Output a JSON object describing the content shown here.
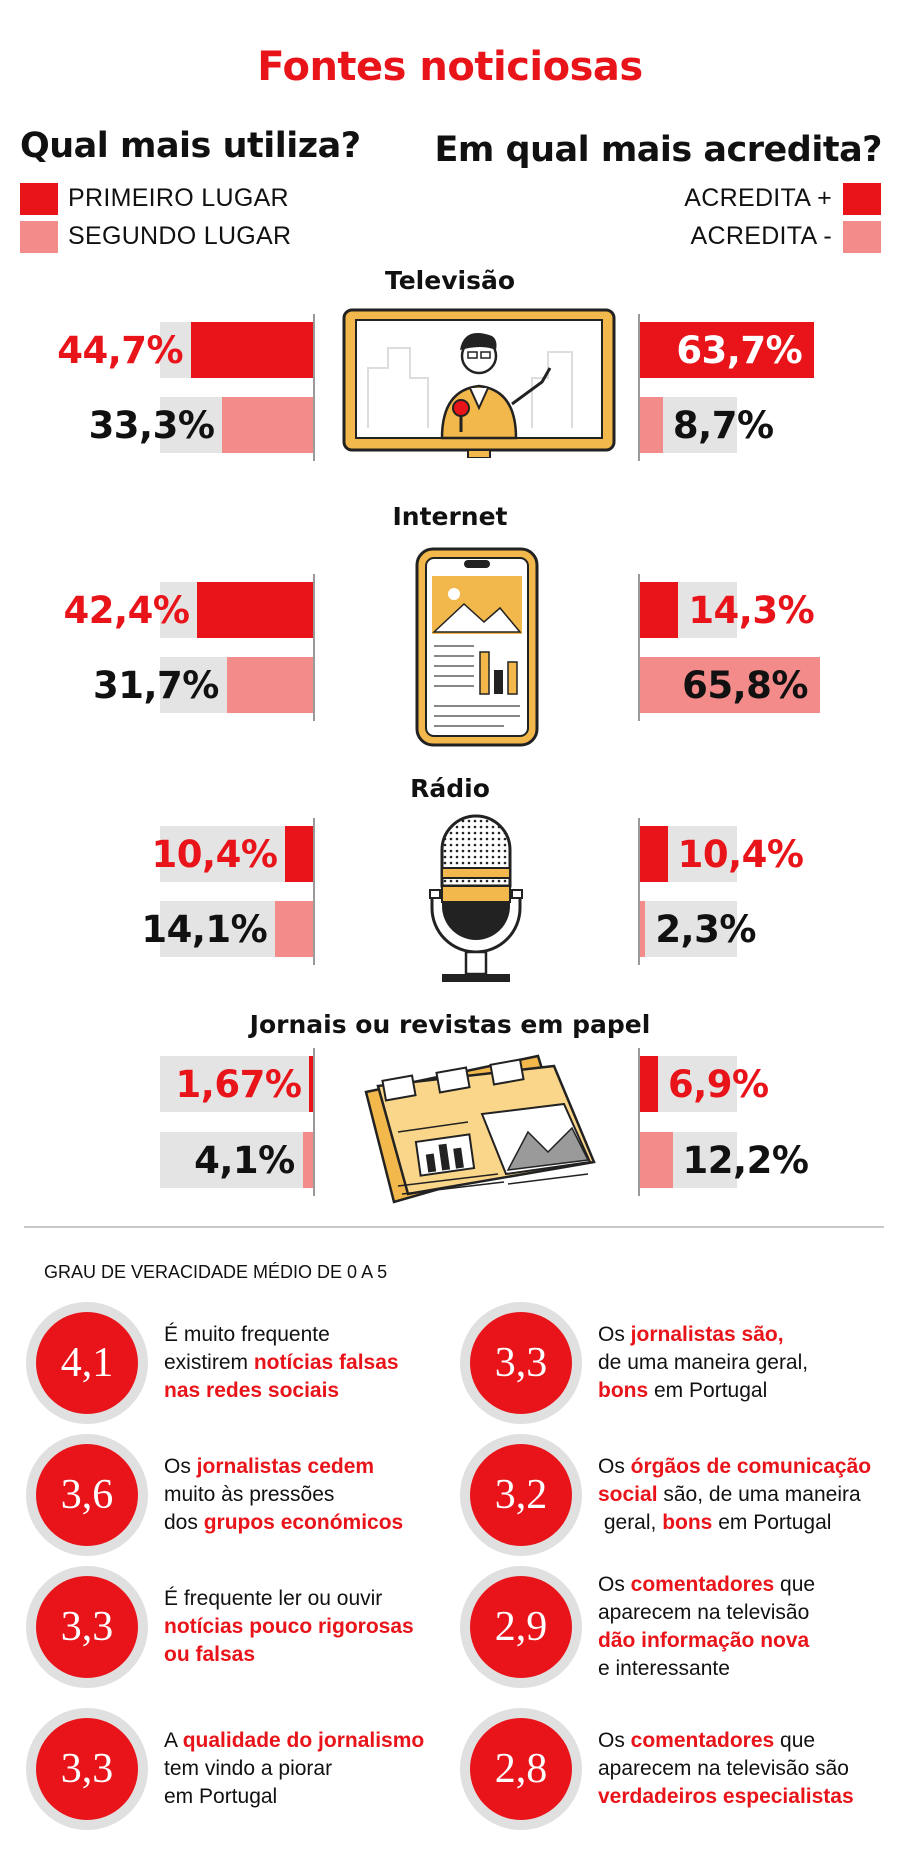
{
  "title": "Fontes noticiosas",
  "left_heading": "Qual mais utiliza?",
  "right_heading": "Em qual mais acredita?",
  "legend_left": [
    {
      "label": "PRIMEIRO LUGAR",
      "color": "#e8141a"
    },
    {
      "label": "SEGUNDO LUGAR",
      "color": "#f48b8b"
    }
  ],
  "legend_right": [
    {
      "label": "ACREDITA +",
      "color": "#e8141a"
    },
    {
      "label": "ACREDITA -",
      "color": "#f48b8b"
    }
  ],
  "chart_data": {
    "type": "bar",
    "layout": "butterfly",
    "categories": [
      "Televisão",
      "Internet",
      "Rádio",
      "Jornais ou revistas em papel"
    ],
    "series": [
      {
        "name": "PRIMEIRO LUGAR",
        "side": "left",
        "values": [
          44.7,
          42.4,
          10.4,
          1.67
        ],
        "labels": [
          "44,7%",
          "42,4%",
          "10,4%",
          "1,67%"
        ]
      },
      {
        "name": "SEGUNDO LUGAR",
        "side": "left",
        "values": [
          33.3,
          31.7,
          14.1,
          4.1
        ],
        "labels": [
          "33,3%",
          "31,7%",
          "14,1%",
          "4,1%"
        ]
      },
      {
        "name": "ACREDITA +",
        "side": "right",
        "values": [
          63.7,
          14.3,
          10.4,
          6.9
        ],
        "labels": [
          "63,7%",
          "14,3%",
          "10,4%",
          "6,9%"
        ]
      },
      {
        "name": "ACREDITA -",
        "side": "right",
        "values": [
          8.7,
          65.8,
          2.3,
          12.2
        ],
        "labels": [
          "8,7%",
          "65,8%",
          "2,3%",
          "12,2%"
        ]
      }
    ]
  },
  "veracity": {
    "heading": "GRAU DE VERACIDADE MÉDIO DE 0 A 5",
    "items": [
      {
        "score": "4,1",
        "lines": [
          [
            {
              "t": "É muito frequente",
              "h": false
            }
          ],
          [
            {
              "t": "existirem ",
              "h": false
            },
            {
              "t": "notícias falsas",
              "h": true
            }
          ],
          [
            {
              "t": "nas redes sociais",
              "h": true
            }
          ]
        ]
      },
      {
        "score": "3,3",
        "lines": [
          [
            {
              "t": "Os ",
              "h": false
            },
            {
              "t": "jornalistas são,",
              "h": true
            }
          ],
          [
            {
              "t": "de uma maneira geral,",
              "h": false
            }
          ],
          [
            {
              "t": "bons",
              "h": true
            },
            {
              "t": " em Portugal",
              "h": false
            }
          ]
        ]
      },
      {
        "score": "3,6",
        "lines": [
          [
            {
              "t": "Os ",
              "h": false
            },
            {
              "t": "jornalistas cedem",
              "h": true
            }
          ],
          [
            {
              "t": "muito às pressões",
              "h": false
            }
          ],
          [
            {
              "t": "dos ",
              "h": false
            },
            {
              "t": "grupos económicos",
              "h": true
            }
          ]
        ]
      },
      {
        "score": "3,2",
        "lines": [
          [
            {
              "t": "Os ",
              "h": false
            },
            {
              "t": "órgãos de comunicação",
              "h": true
            }
          ],
          [
            {
              "t": "social",
              "h": true
            },
            {
              "t": " são, de uma maneira",
              "h": false
            }
          ],
          [
            {
              "t": " geral, ",
              "h": false
            },
            {
              "t": "bons",
              "h": true
            },
            {
              "t": " em Portugal",
              "h": false
            }
          ]
        ]
      },
      {
        "score": "3,3",
        "lines": [
          [
            {
              "t": "É frequente ler ou ouvir",
              "h": false
            }
          ],
          [
            {
              "t": "notícias pouco rigorosas",
              "h": true
            }
          ],
          [
            {
              "t": "ou falsas",
              "h": true
            }
          ]
        ]
      },
      {
        "score": "2,9",
        "lines": [
          [
            {
              "t": "Os ",
              "h": false
            },
            {
              "t": "comentadores",
              "h": true
            },
            {
              "t": " que",
              "h": false
            }
          ],
          [
            {
              "t": "aparecem na televisão",
              "h": false
            }
          ],
          [
            {
              "t": "dão informação nova",
              "h": true
            }
          ],
          [
            {
              "t": "e interessante",
              "h": false
            }
          ]
        ]
      },
      {
        "score": "3,3",
        "lines": [
          [
            {
              "t": "A ",
              "h": false
            },
            {
              "t": "qualidade do jornalismo",
              "h": true
            }
          ],
          [
            {
              "t": "tem vindo a piorar",
              "h": false
            }
          ],
          [
            {
              "t": "em Portugal",
              "h": false
            }
          ]
        ]
      },
      {
        "score": "2,8",
        "lines": [
          [
            {
              "t": "Os ",
              "h": false
            },
            {
              "t": "comentadores",
              "h": true
            },
            {
              "t": " que",
              "h": false
            }
          ],
          [
            {
              "t": "aparecem na televisão são",
              "h": false
            }
          ],
          [
            {
              "t": "verdadeiros especialistas",
              "h": true
            }
          ]
        ]
      }
    ]
  }
}
